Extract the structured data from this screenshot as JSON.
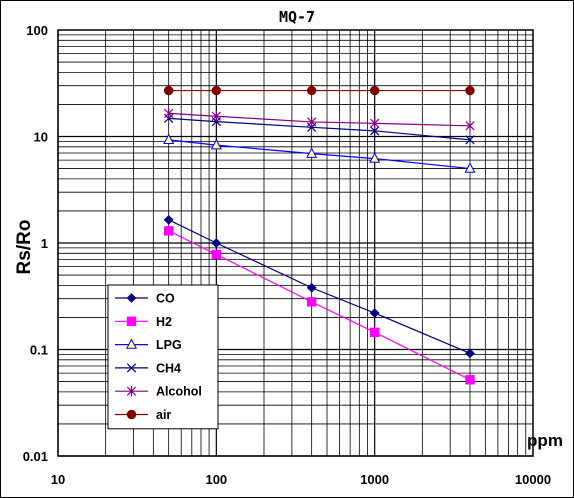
{
  "chart_data": {
    "type": "line",
    "title": "MQ-7",
    "xlabel": "ppm",
    "ylabel": "Rs/Ro",
    "xscale": "log",
    "yscale": "log",
    "xlim": [
      10,
      10000
    ],
    "ylim": [
      0.01,
      100
    ],
    "x_tick_labels": [
      "10",
      "100",
      "1000",
      "10000"
    ],
    "y_tick_labels": [
      "100",
      "10",
      "1",
      "0.1",
      "0.01"
    ],
    "grid": true,
    "legend_position": "bottom-left",
    "series": [
      {
        "name": "CO",
        "color": "#000080",
        "marker": "diamond",
        "x": [
          50,
          100,
          400,
          1000,
          4000
        ],
        "y": [
          1.65,
          1.0,
          0.38,
          0.22,
          0.092
        ]
      },
      {
        "name": "H2",
        "color": "#ff00ff",
        "marker": "square",
        "x": [
          50,
          100,
          400,
          1000,
          4000
        ],
        "y": [
          1.3,
          0.78,
          0.28,
          0.145,
          0.052
        ]
      },
      {
        "name": "LPG",
        "color": "#0000ff",
        "marker": "triangle",
        "x": [
          50,
          100,
          400,
          1000,
          4000
        ],
        "y": [
          9.3,
          8.3,
          6.9,
          6.2,
          5.0
        ]
      },
      {
        "name": "CH4",
        "color": "#000080",
        "marker": "x",
        "x": [
          50,
          100,
          400,
          1000,
          4000
        ],
        "y": [
          14.8,
          13.8,
          12.2,
          11.3,
          9.3
        ]
      },
      {
        "name": "Alcohol",
        "color": "#800080",
        "marker": "asterisk",
        "x": [
          50,
          100,
          400,
          1000,
          4000
        ],
        "y": [
          16.5,
          15.5,
          13.7,
          13.3,
          12.6
        ]
      },
      {
        "name": "air",
        "color": "#800000",
        "marker": "circle",
        "x": [
          50,
          100,
          400,
          1000,
          4000
        ],
        "y": [
          27,
          27,
          27,
          27,
          27
        ]
      }
    ]
  }
}
